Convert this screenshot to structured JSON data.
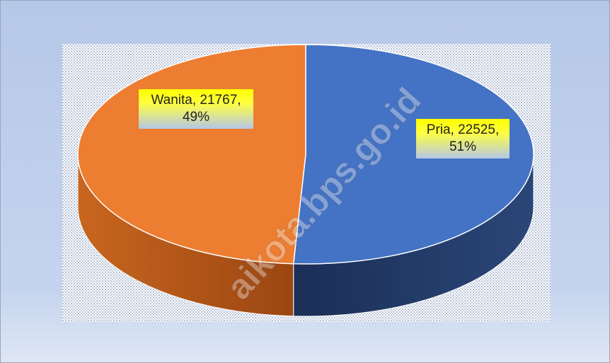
{
  "chart_data": {
    "type": "pie",
    "depth3d": true,
    "categories": [
      "Pria",
      "Wanita"
    ],
    "values": [
      22525,
      21767
    ],
    "value_labels": [
      "Pria, 22525, 51%",
      "Wanita, 21767, 49%"
    ],
    "colors": [
      "#4472c4",
      "#ed7d31"
    ],
    "watermark": "aikota.bps.go.id"
  }
}
